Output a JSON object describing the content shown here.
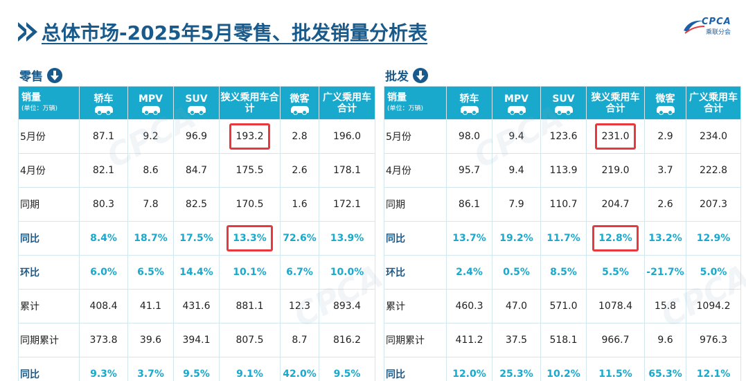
{
  "title": "总体市场-2025年5月零售、批发销量分析表",
  "logo": {
    "brand": "CPCA",
    "sub": "乘联分会"
  },
  "retail": {
    "label": "零售",
    "header": {
      "first": "销量",
      "unit": "(单位：万辆)",
      "cols": [
        "轿车",
        "MPV",
        "SUV",
        "狭义乘用车合计",
        "微客",
        "广义乘用车合计"
      ]
    },
    "rows": [
      {
        "label": "5月份",
        "values": [
          "87.1",
          "9.2",
          "96.9",
          "193.2",
          "2.8",
          "196.0"
        ],
        "type": "num"
      },
      {
        "label": "4月份",
        "values": [
          "82.1",
          "8.6",
          "84.7",
          "175.5",
          "2.6",
          "178.1"
        ],
        "type": "num"
      },
      {
        "label": "同期",
        "values": [
          "80.3",
          "7.8",
          "82.5",
          "170.5",
          "1.6",
          "172.1"
        ],
        "type": "num"
      },
      {
        "label": "同比",
        "values": [
          "8.4%",
          "18.7%",
          "17.5%",
          "13.3%",
          "72.6%",
          "13.9%"
        ],
        "type": "pct"
      },
      {
        "label": "环比",
        "values": [
          "6.0%",
          "6.5%",
          "14.4%",
          "10.1%",
          "6.7%",
          "10.0%"
        ],
        "type": "pct"
      },
      {
        "label": "累计",
        "values": [
          "408.4",
          "41.1",
          "431.6",
          "881.1",
          "12.3",
          "893.4"
        ],
        "type": "num"
      },
      {
        "label": "同期累计",
        "values": [
          "373.8",
          "39.6",
          "394.1",
          "807.5",
          "8.7",
          "816.2"
        ],
        "type": "num"
      },
      {
        "label": "同比",
        "values": [
          "9.3%",
          "3.7%",
          "9.5%",
          "9.1%",
          "42.0%",
          "9.5%"
        ],
        "type": "pct"
      }
    ]
  },
  "wholesale": {
    "label": "批发",
    "header": {
      "first": "销量",
      "unit": "(单位：万辆)",
      "cols": [
        "轿车",
        "MPV",
        "SUV",
        "狭义乘用车合计",
        "微客",
        "广义乘用车合计"
      ]
    },
    "rows": [
      {
        "label": "5月份",
        "values": [
          "98.0",
          "9.4",
          "123.6",
          "231.0",
          "2.9",
          "234.0"
        ],
        "type": "num"
      },
      {
        "label": "4月份",
        "values": [
          "95.7",
          "9.4",
          "113.9",
          "219.0",
          "3.7",
          "222.8"
        ],
        "type": "num"
      },
      {
        "label": "同期",
        "values": [
          "86.1",
          "7.9",
          "110.7",
          "204.7",
          "2.6",
          "207.3"
        ],
        "type": "num"
      },
      {
        "label": "同比",
        "values": [
          "13.7%",
          "19.2%",
          "11.7%",
          "12.8%",
          "13.2%",
          "12.9%"
        ],
        "type": "pct"
      },
      {
        "label": "环比",
        "values": [
          "2.4%",
          "0.5%",
          "8.5%",
          "5.5%",
          "-21.7%",
          "5.0%"
        ],
        "type": "pct"
      },
      {
        "label": "累计",
        "values": [
          "460.3",
          "47.0",
          "571.0",
          "1078.4",
          "15.8",
          "1094.2"
        ],
        "type": "num"
      },
      {
        "label": "同期累计",
        "values": [
          "411.2",
          "37.5",
          "518.1",
          "966.7",
          "9.6",
          "976.3"
        ],
        "type": "num"
      },
      {
        "label": "同比",
        "values": [
          "12.0%",
          "25.3%",
          "10.2%",
          "11.5%",
          "65.3%",
          "12.1%"
        ],
        "type": "pct"
      }
    ]
  },
  "colors": {
    "header_bg": "#18a9cc",
    "title": "#1a5a8a",
    "highlight": "#e8383d"
  }
}
